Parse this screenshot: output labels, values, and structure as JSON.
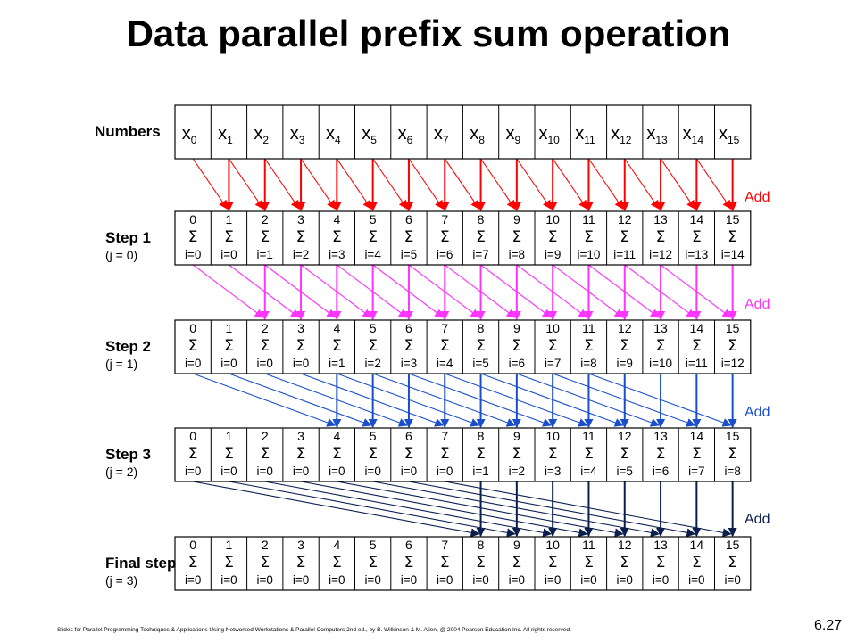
{
  "title": "Data parallel prefix sum operation",
  "numbers_label": "Numbers",
  "x_var": "x",
  "x_indices": [
    "0",
    "1",
    "2",
    "3",
    "4",
    "5",
    "6",
    "7",
    "8",
    "9",
    "10",
    "11",
    "12",
    "13",
    "14",
    "15"
  ],
  "sigma_symbol": "Σ",
  "add_label": "Add",
  "steps": [
    {
      "label": "Step 1",
      "sub": "(j = 0)",
      "lower": [
        "i=0",
        "i=0",
        "i=1",
        "i=2",
        "i=3",
        "i=4",
        "i=5",
        "i=6",
        "i=7",
        "i=8",
        "i=9",
        "i=10",
        "i=11",
        "i=12",
        "i=13",
        "i=14"
      ]
    },
    {
      "label": "Step 2",
      "sub": "(j = 1)",
      "lower": [
        "i=0",
        "i=0",
        "i=0",
        "i=0",
        "i=1",
        "i=2",
        "i=3",
        "i=4",
        "i=5",
        "i=6",
        "i=7",
        "i=8",
        "i=9",
        "i=10",
        "i=11",
        "i=12"
      ]
    },
    {
      "label": "Step 3",
      "sub": "(j = 2)",
      "lower": [
        "i=0",
        "i=0",
        "i=0",
        "i=0",
        "i=0",
        "i=0",
        "i=0",
        "i=0",
        "i=1",
        "i=2",
        "i=3",
        "i=4",
        "i=5",
        "i=6",
        "i=7",
        "i=8"
      ]
    },
    {
      "label": "Final step",
      "sub": "(j = 3)",
      "lower": [
        "i=0",
        "i=0",
        "i=0",
        "i=0",
        "i=0",
        "i=0",
        "i=0",
        "i=0",
        "i=0",
        "i=0",
        "i=0",
        "i=0",
        "i=0",
        "i=0",
        "i=0",
        "i=0"
      ]
    }
  ],
  "upper_values": [
    "0",
    "1",
    "2",
    "3",
    "4",
    "5",
    "6",
    "7",
    "8",
    "9",
    "10",
    "11",
    "12",
    "13",
    "14",
    "15"
  ],
  "arrow_colors": [
    "#ff0000",
    "#ff33ff",
    "#1a4fc9",
    "#0b1f4f"
  ],
  "add_colors": [
    "#ff0000",
    "#ff33ff",
    "#1a4fc9",
    "#0b1f4f"
  ],
  "footer": "Slides for Parallel Programming Techniques & Applications Using Networked Workstations & Parallel Computers 2nd ed., by B. Wilkinson & M. Allen, @ 2004 Pearson Education Inc. All rights reserved.",
  "page_number": "6.27"
}
